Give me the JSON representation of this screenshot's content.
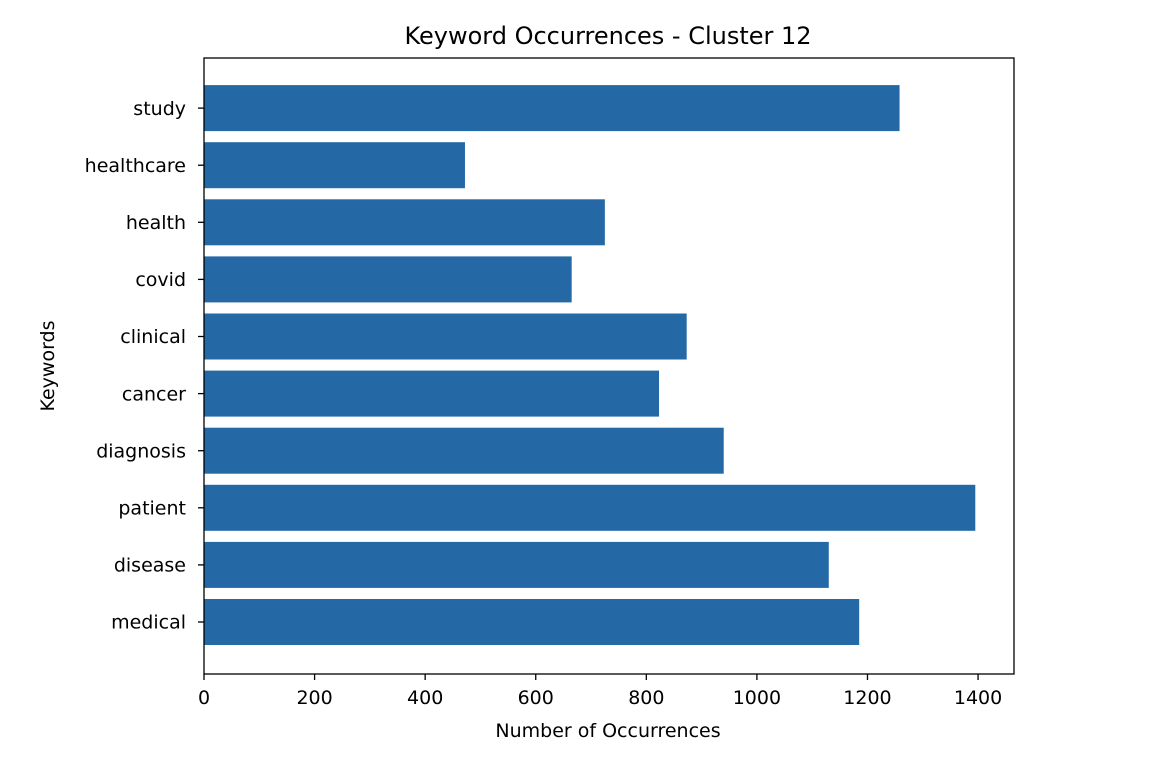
{
  "chart_data": {
    "type": "bar",
    "orientation": "horizontal",
    "title": "Keyword Occurrences - Cluster 12",
    "xlabel": "Number of Occurrences",
    "ylabel": "Keywords",
    "categories": [
      "medical",
      "disease",
      "patient",
      "diagnosis",
      "cancer",
      "clinical",
      "covid",
      "health",
      "healthcare",
      "study"
    ],
    "values": [
      1185,
      1130,
      1395,
      940,
      823,
      873,
      665,
      725,
      472,
      1258
    ],
    "xlim": [
      0,
      1465
    ],
    "xticks": [
      0,
      200,
      400,
      600,
      800,
      1000,
      1200,
      1400
    ],
    "grid": false,
    "bar_color": "#2469a6"
  }
}
